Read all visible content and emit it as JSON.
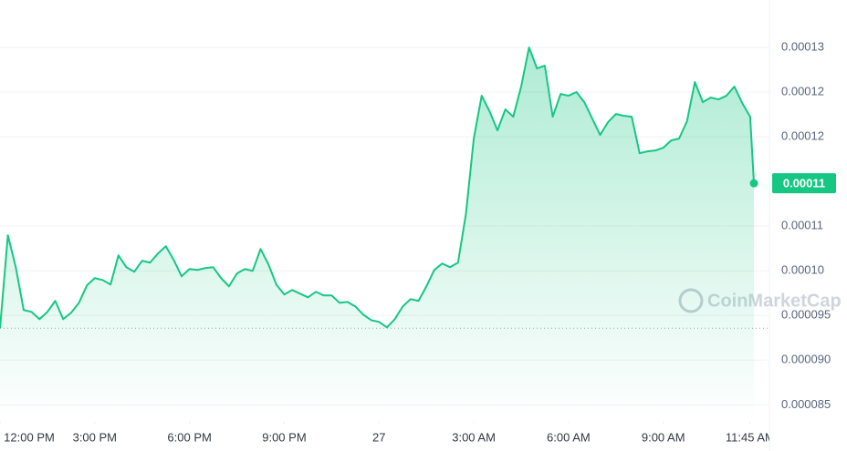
{
  "chart_data": {
    "type": "area-line",
    "watermark": "CoinMarketCap",
    "last_price_label": "0.00011",
    "color": "#16c784",
    "grid": true,
    "xlim": [
      0,
      24.36
    ],
    "ylim": [
      8.32e-05,
      0.0001303
    ],
    "yticks": [
      {
        "value": 0.000125,
        "label": "0.00013"
      },
      {
        "value": 0.00012,
        "label": "0.00012"
      },
      {
        "value": 0.000115,
        "label": "0.00012"
      },
      {
        "value": 0.000105,
        "label": "0.00011"
      },
      {
        "value": 0.0001,
        "label": "0.00010"
      },
      {
        "value": 9.5e-05,
        "label": "0.000095"
      },
      {
        "value": 9e-05,
        "label": "0.000090"
      },
      {
        "value": 8.5e-05,
        "label": "0.000085"
      }
    ],
    "xticks": [
      {
        "value": 0,
        "label": "12:00 PM"
      },
      {
        "value": 3,
        "label": "3:00 PM"
      },
      {
        "value": 6,
        "label": "6:00 PM"
      },
      {
        "value": 9,
        "label": "9:00 PM"
      },
      {
        "value": 12,
        "label": "27"
      },
      {
        "value": 15,
        "label": "3:00 AM"
      },
      {
        "value": 18,
        "label": "6:00 AM"
      },
      {
        "value": 21,
        "label": "9:00 AM"
      },
      {
        "value": 23.75,
        "label": "11:45 AM"
      }
    ],
    "x": [
      0,
      0.25,
      0.5,
      0.75,
      1,
      1.25,
      1.5,
      1.75,
      2,
      2.25,
      2.5,
      2.75,
      3,
      3.25,
      3.5,
      3.75,
      4,
      4.25,
      4.5,
      4.75,
      5,
      5.25,
      5.5,
      5.75,
      6,
      6.25,
      6.5,
      6.75,
      7,
      7.25,
      7.5,
      7.75,
      8,
      8.25,
      8.5,
      8.75,
      9,
      9.25,
      9.5,
      9.75,
      10,
      10.25,
      10.5,
      10.75,
      11,
      11.25,
      11.5,
      11.75,
      12,
      12.25,
      12.5,
      12.75,
      13,
      13.25,
      13.5,
      13.75,
      14,
      14.25,
      14.5,
      14.75,
      15,
      15.25,
      15.5,
      15.75,
      16,
      16.25,
      16.5,
      16.75,
      17,
      17.25,
      17.5,
      17.75,
      18,
      18.25,
      18.5,
      18.75,
      19,
      19.25,
      19.5,
      19.75,
      20,
      20.25,
      20.5,
      20.75,
      21,
      21.25,
      21.5,
      21.75,
      22,
      22.25,
      22.5,
      22.75,
      23,
      23.25,
      23.5,
      23.75,
      23.87
    ],
    "values": [
      9.357e-05,
      0.00010397,
      0.0001004,
      9.561e-05,
      9.54e-05,
      9.459e-05,
      9.54e-05,
      9.663e-05,
      9.459e-05,
      9.53e-05,
      9.642e-05,
      9.836e-05,
      9.918e-05,
      9.897e-05,
      9.846e-05,
      0.00010173,
      0.0001004,
      9.989e-05,
      0.00010112,
      0.00010091,
      0.00010193,
      0.00010275,
      0.00010122,
      9.938e-05,
      0.0001002,
      0.0001001,
      0.0001003,
      0.0001004,
      9.918e-05,
      9.826e-05,
      9.969e-05,
      0.0001002,
      9.999e-05,
      0.00010244,
      0.00010071,
      9.846e-05,
      9.734e-05,
      9.785e-05,
      9.744e-05,
      9.703e-05,
      9.765e-05,
      9.724e-05,
      9.724e-05,
      9.642e-05,
      9.652e-05,
      9.601e-05,
      9.51e-05,
      9.448e-05,
      9.428e-05,
      9.367e-05,
      9.459e-05,
      9.601e-05,
      9.683e-05,
      9.663e-05,
      9.826e-05,
      0.0001001,
      0.00010081,
      0.0001004,
      0.00010091,
      0.00010632,
      0.00011479,
      0.00011959,
      0.00011785,
      0.00011571,
      0.00011806,
      0.00011724,
      0.00012061,
      0.00012499,
      0.00012265,
      0.00012295,
      0.00011724,
      0.00011979,
      0.00011959,
      0.00012,
      0.00011887,
      0.00011703,
      0.0001152,
      0.00011663,
      0.00011754,
      0.00011734,
      0.00011724,
      0.00011316,
      0.00011336,
      0.00011346,
      0.00011377,
      0.00011459,
      0.00011479,
      0.00011673,
      0.00012112,
      0.00011887,
      0.00011938,
      0.00011918,
      0.00011959,
      0.00012061,
      0.00011877,
      0.00011724,
      0.00010979
    ]
  }
}
